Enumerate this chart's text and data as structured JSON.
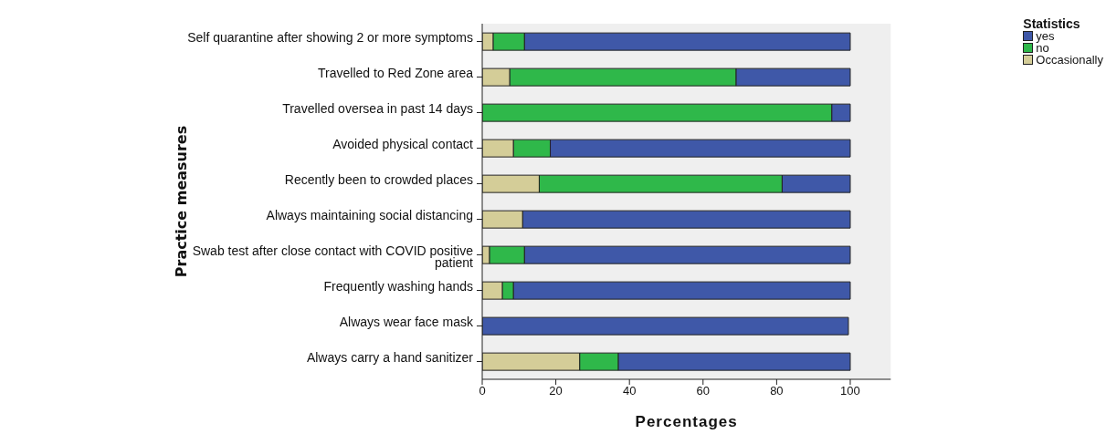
{
  "chart_data": {
    "type": "bar",
    "orientation": "horizontal",
    "stacked": true,
    "xlabel": "Percentages",
    "ylabel": "Practice measures",
    "legend_title": "Statistics",
    "categories": [
      "Self quarantine after showing 2 or more symptoms",
      "Travelled to Red Zone area",
      "Travelled oversea in past 14 days",
      "Avoided physical contact",
      "Recently been to crowded places",
      "Always maintaining social distancing",
      "Swab test after close contact with COVID positive patient",
      "Frequently washing hands",
      "Always wear face mask",
      "Always carry a hand sanitizer"
    ],
    "series": [
      {
        "name": "Occasionally",
        "color": "#d4cd98",
        "values": [
          3,
          7.5,
          0,
          8.5,
          15.5,
          11,
          2,
          5.5,
          null,
          26.5
        ]
      },
      {
        "name": "no",
        "color": "#2fb84a",
        "values": [
          8.5,
          61.5,
          95,
          10,
          66,
          0,
          9.5,
          3,
          0,
          10.5
        ]
      },
      {
        "name": "yes",
        "color": "#3f58a8",
        "values": [
          88.5,
          31,
          5,
          81.5,
          18.5,
          89,
          88.5,
          91.5,
          99.5,
          63
        ]
      }
    ],
    "xlim": [
      0,
      111
    ],
    "xticks": [
      0,
      20,
      40,
      60,
      80,
      100
    ],
    "legend": "right"
  }
}
